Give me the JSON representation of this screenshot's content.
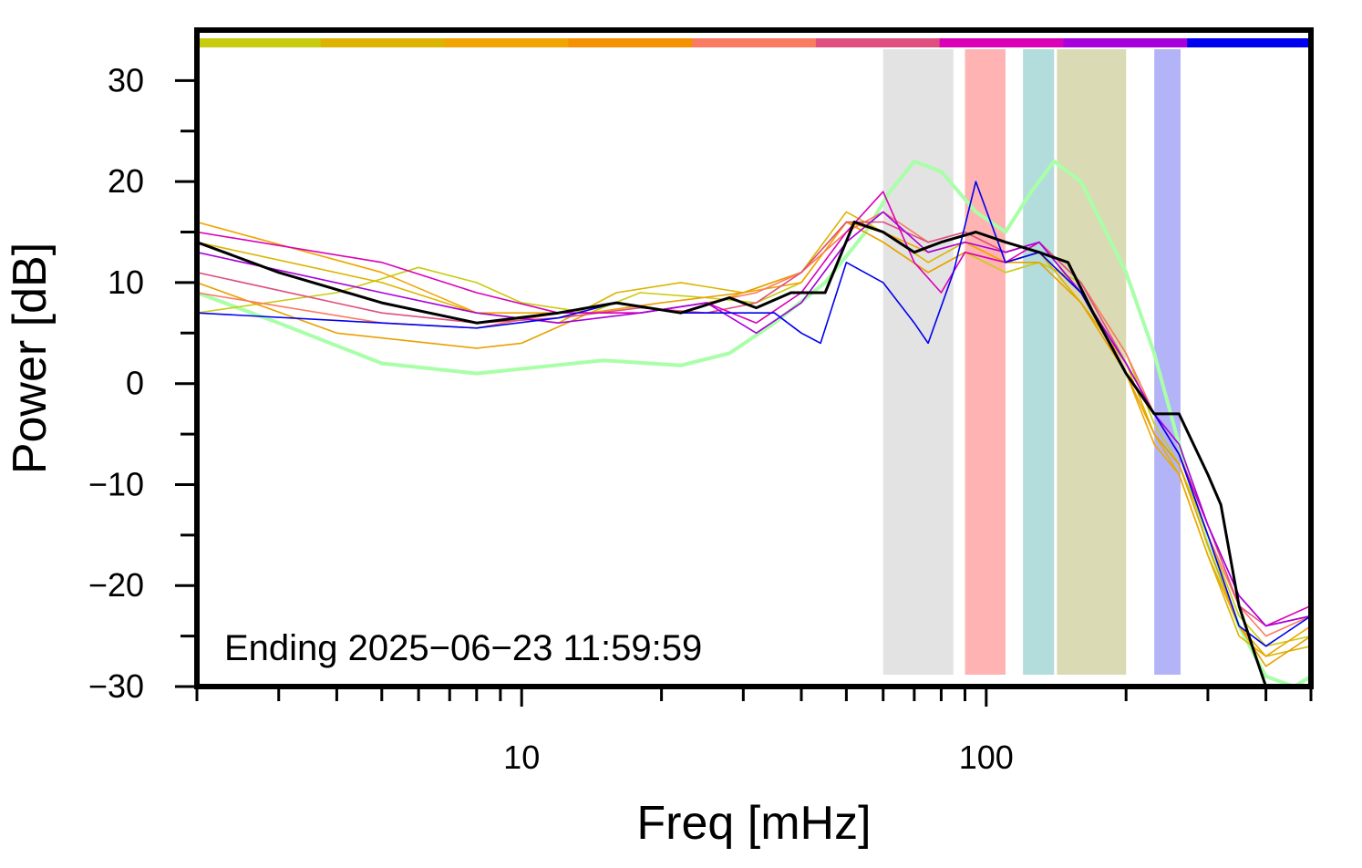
{
  "chart_data": {
    "type": "line",
    "xlabel": "Freq [mHz]",
    "ylabel": "Power [dB]",
    "xscale": "log",
    "xlim": [
      2,
      500
    ],
    "ylim": [
      -30,
      35
    ],
    "x_ticks": [
      {
        "value": 10,
        "label": "10"
      },
      {
        "value": 100,
        "label": "100"
      }
    ],
    "y_ticks": [
      {
        "value": 30,
        "label": "30"
      },
      {
        "value": 20,
        "label": "20"
      },
      {
        "value": 10,
        "label": "10"
      },
      {
        "value": 0,
        "label": "0"
      },
      {
        "value": -10,
        "label": "−10"
      },
      {
        "value": -20,
        "label": "−20"
      },
      {
        "value": -30,
        "label": "−30"
      }
    ],
    "annotation": "Ending 2025−06−23 11:59:59",
    "bands": [
      {
        "x0": 60,
        "x1": 85,
        "color": "#e3e3e3"
      },
      {
        "x0": 90,
        "x1": 110,
        "color": "#ffb3b3"
      },
      {
        "x0": 120,
        "x1": 140,
        "color": "#b3dcdd"
      },
      {
        "x0": 142,
        "x1": 200,
        "color": "#dadab4"
      },
      {
        "x0": 230,
        "x1": 262,
        "color": "#b3b3f7"
      }
    ],
    "color_strip": [
      "#c8cc10",
      "#dcb400",
      "#f0a500",
      "#f59200",
      "#fb7a62",
      "#df5080",
      "#da00b8",
      "#a800dc",
      "#0000f0"
    ],
    "series": [
      {
        "color": "#a8ffa8",
        "width": 4,
        "points": [
          [
            2,
            9
          ],
          [
            3,
            6
          ],
          [
            5,
            2
          ],
          [
            8,
            1
          ],
          [
            15,
            2.3
          ],
          [
            22,
            1.8
          ],
          [
            28,
            3
          ],
          [
            35,
            6
          ],
          [
            45,
            10
          ],
          [
            55,
            15
          ],
          [
            62,
            19
          ],
          [
            70,
            22
          ],
          [
            80,
            21
          ],
          [
            95,
            17
          ],
          [
            110,
            15
          ],
          [
            125,
            19
          ],
          [
            140,
            22
          ],
          [
            160,
            20
          ],
          [
            200,
            11
          ],
          [
            230,
            3
          ],
          [
            260,
            -6
          ],
          [
            300,
            -16
          ],
          [
            350,
            -24
          ],
          [
            400,
            -29
          ],
          [
            460,
            -30
          ],
          [
            500,
            -29
          ]
        ]
      },
      {
        "color": "#c8cc10",
        "width": 1.6,
        "points": [
          [
            2,
            7
          ],
          [
            4,
            9
          ],
          [
            6,
            11.5
          ],
          [
            8,
            10
          ],
          [
            10,
            8
          ],
          [
            14,
            7
          ],
          [
            18,
            9
          ],
          [
            25,
            8.5
          ],
          [
            32,
            8
          ],
          [
            40,
            10
          ],
          [
            50,
            16
          ],
          [
            60,
            14
          ],
          [
            75,
            11
          ],
          [
            90,
            13
          ],
          [
            110,
            11
          ],
          [
            130,
            12
          ],
          [
            160,
            10
          ],
          [
            200,
            3
          ],
          [
            230,
            -4
          ],
          [
            260,
            -8
          ],
          [
            300,
            -15
          ],
          [
            350,
            -23
          ],
          [
            400,
            -26
          ],
          [
            500,
            -25
          ]
        ]
      },
      {
        "color": "#dcb400",
        "width": 1.6,
        "points": [
          [
            2,
            14
          ],
          [
            5,
            10
          ],
          [
            8,
            7
          ],
          [
            12,
            6
          ],
          [
            16,
            9
          ],
          [
            22,
            10
          ],
          [
            30,
            9
          ],
          [
            40,
            11
          ],
          [
            50,
            17
          ],
          [
            60,
            15
          ],
          [
            75,
            12
          ],
          [
            90,
            14
          ],
          [
            110,
            12
          ],
          [
            130,
            13
          ],
          [
            160,
            8
          ],
          [
            200,
            2
          ],
          [
            230,
            -5
          ],
          [
            260,
            -9
          ],
          [
            300,
            -17
          ],
          [
            350,
            -25
          ],
          [
            400,
            -27
          ],
          [
            500,
            -26
          ]
        ]
      },
      {
        "color": "#f0a500",
        "width": 1.6,
        "points": [
          [
            2,
            16
          ],
          [
            5,
            11
          ],
          [
            8,
            7
          ],
          [
            12,
            7
          ],
          [
            16,
            8
          ],
          [
            22,
            7
          ],
          [
            30,
            9
          ],
          [
            40,
            10
          ],
          [
            50,
            16
          ],
          [
            60,
            15
          ],
          [
            75,
            13
          ],
          [
            90,
            14
          ],
          [
            110,
            12
          ],
          [
            130,
            13
          ],
          [
            160,
            9
          ],
          [
            200,
            1
          ],
          [
            230,
            -6
          ],
          [
            260,
            -9
          ],
          [
            300,
            -17
          ],
          [
            350,
            -24
          ],
          [
            400,
            -27
          ],
          [
            500,
            -24
          ]
        ]
      },
      {
        "color": "#e8a000",
        "width": 1.6,
        "points": [
          [
            2,
            10
          ],
          [
            4,
            5
          ],
          [
            8,
            3.5
          ],
          [
            10,
            4
          ],
          [
            14,
            7
          ],
          [
            20,
            8
          ],
          [
            30,
            9
          ],
          [
            40,
            11
          ],
          [
            50,
            16
          ],
          [
            60,
            14
          ],
          [
            75,
            11
          ],
          [
            90,
            13
          ],
          [
            110,
            12
          ],
          [
            130,
            12
          ],
          [
            160,
            8
          ],
          [
            200,
            1
          ],
          [
            230,
            -5
          ],
          [
            260,
            -8
          ],
          [
            300,
            -16
          ],
          [
            350,
            -24
          ],
          [
            400,
            -28
          ],
          [
            500,
            -25
          ]
        ]
      },
      {
        "color": "#fb7a62",
        "width": 1.6,
        "points": [
          [
            2,
            9
          ],
          [
            5,
            6
          ],
          [
            8,
            5.5
          ],
          [
            12,
            7
          ],
          [
            18,
            7
          ],
          [
            25,
            8
          ],
          [
            32,
            9
          ],
          [
            40,
            11
          ],
          [
            50,
            15
          ],
          [
            60,
            17
          ],
          [
            75,
            14
          ],
          [
            90,
            15
          ],
          [
            110,
            13
          ],
          [
            130,
            14
          ],
          [
            160,
            10
          ],
          [
            200,
            3
          ],
          [
            230,
            -3
          ],
          [
            260,
            -7
          ],
          [
            300,
            -15
          ],
          [
            350,
            -22
          ],
          [
            400,
            -25
          ],
          [
            500,
            -23
          ]
        ]
      },
      {
        "color": "#df5080",
        "width": 1.6,
        "points": [
          [
            2,
            11
          ],
          [
            5,
            7
          ],
          [
            8,
            6
          ],
          [
            12,
            6.5
          ],
          [
            18,
            7.5
          ],
          [
            25,
            7
          ],
          [
            32,
            8
          ],
          [
            40,
            11
          ],
          [
            50,
            16
          ],
          [
            60,
            16
          ],
          [
            75,
            14
          ],
          [
            90,
            15
          ],
          [
            110,
            13
          ],
          [
            130,
            14
          ],
          [
            160,
            10
          ],
          [
            200,
            2
          ],
          [
            230,
            -3
          ],
          [
            260,
            -7
          ],
          [
            300,
            -14
          ],
          [
            350,
            -22
          ],
          [
            400,
            -24
          ],
          [
            500,
            -23
          ]
        ]
      },
      {
        "color": "#da00b8",
        "width": 1.6,
        "points": [
          [
            2,
            15
          ],
          [
            5,
            12
          ],
          [
            8,
            9
          ],
          [
            12,
            7
          ],
          [
            18,
            7
          ],
          [
            25,
            8
          ],
          [
            32,
            6
          ],
          [
            40,
            9
          ],
          [
            50,
            15
          ],
          [
            60,
            19
          ],
          [
            70,
            12
          ],
          [
            80,
            9
          ],
          [
            90,
            13
          ],
          [
            110,
            12
          ],
          [
            130,
            14
          ],
          [
            160,
            9
          ],
          [
            200,
            2
          ],
          [
            230,
            -3
          ],
          [
            260,
            -7
          ],
          [
            300,
            -14
          ],
          [
            350,
            -21
          ],
          [
            400,
            -24
          ],
          [
            500,
            -22
          ]
        ]
      },
      {
        "color": "#a800dc",
        "width": 1.6,
        "points": [
          [
            2,
            13
          ],
          [
            5,
            9
          ],
          [
            8,
            7
          ],
          [
            12,
            6
          ],
          [
            18,
            7
          ],
          [
            25,
            8
          ],
          [
            32,
            5
          ],
          [
            40,
            8
          ],
          [
            50,
            14
          ],
          [
            60,
            17
          ],
          [
            75,
            13
          ],
          [
            90,
            14
          ],
          [
            110,
            13
          ],
          [
            130,
            14
          ],
          [
            160,
            9
          ],
          [
            200,
            2
          ],
          [
            230,
            -3
          ],
          [
            260,
            -6
          ],
          [
            300,
            -14
          ],
          [
            350,
            -21
          ],
          [
            400,
            -24
          ],
          [
            500,
            -23
          ]
        ]
      },
      {
        "color": "#0000f0",
        "width": 1.6,
        "points": [
          [
            2,
            7
          ],
          [
            5,
            6
          ],
          [
            8,
            5.5
          ],
          [
            12,
            6.5
          ],
          [
            16,
            8
          ],
          [
            22,
            7
          ],
          [
            28,
            7
          ],
          [
            35,
            7
          ],
          [
            40,
            5
          ],
          [
            44,
            4
          ],
          [
            50,
            12
          ],
          [
            60,
            10
          ],
          [
            70,
            6
          ],
          [
            75,
            4
          ],
          [
            85,
            11
          ],
          [
            95,
            20
          ],
          [
            110,
            12
          ],
          [
            130,
            13
          ],
          [
            160,
            9
          ],
          [
            200,
            1
          ],
          [
            230,
            -3
          ],
          [
            260,
            -7
          ],
          [
            300,
            -15
          ],
          [
            350,
            -24
          ],
          [
            400,
            -26
          ],
          [
            500,
            -23
          ]
        ]
      },
      {
        "color": "#000000",
        "width": 3,
        "points": [
          [
            2,
            14
          ],
          [
            3,
            11
          ],
          [
            5,
            8
          ],
          [
            8,
            6
          ],
          [
            12,
            7
          ],
          [
            16,
            8
          ],
          [
            22,
            7
          ],
          [
            28,
            8.5
          ],
          [
            32,
            7.5
          ],
          [
            38,
            9
          ],
          [
            45,
            9
          ],
          [
            52,
            16
          ],
          [
            60,
            15
          ],
          [
            70,
            13
          ],
          [
            80,
            14
          ],
          [
            95,
            15
          ],
          [
            110,
            14
          ],
          [
            130,
            13
          ],
          [
            150,
            12
          ],
          [
            170,
            7
          ],
          [
            200,
            1
          ],
          [
            230,
            -3
          ],
          [
            260,
            -3
          ],
          [
            300,
            -9
          ],
          [
            320,
            -12
          ],
          [
            350,
            -22
          ],
          [
            380,
            -27
          ],
          [
            400,
            -30
          ]
        ]
      }
    ]
  }
}
